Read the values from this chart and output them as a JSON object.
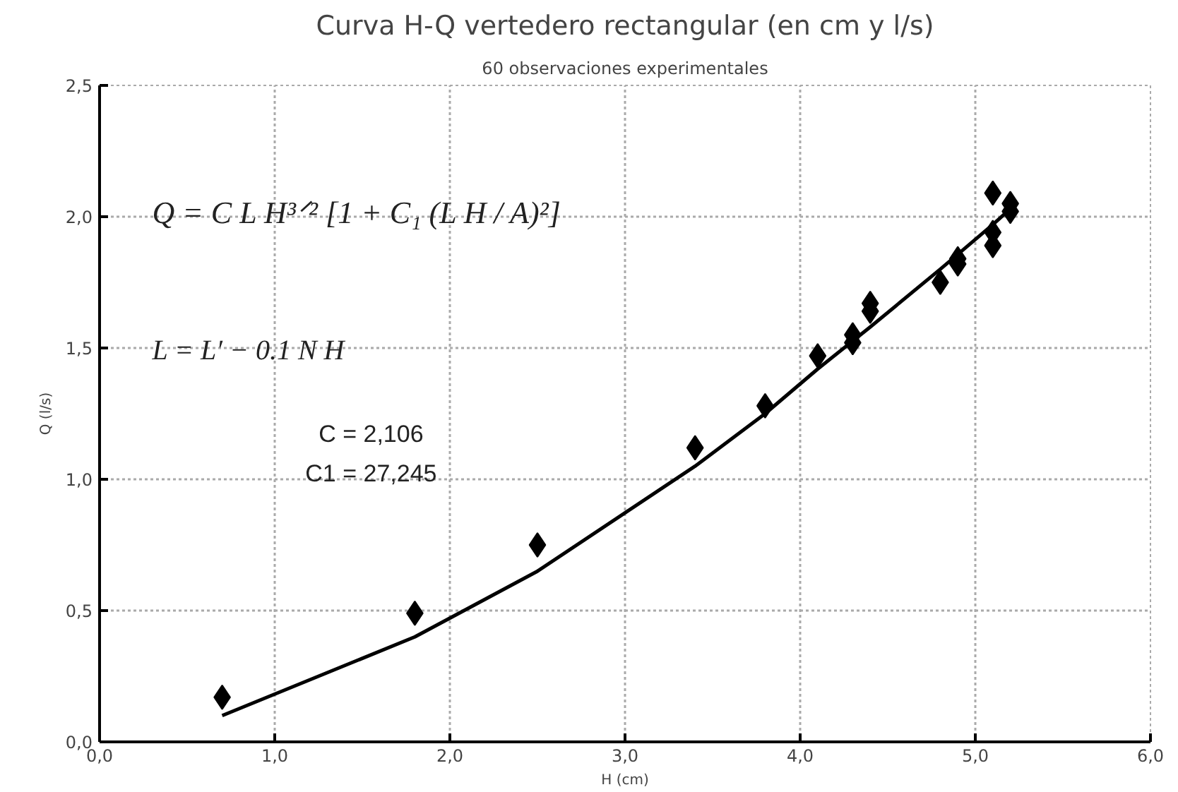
{
  "chart_data": {
    "type": "scatter",
    "title": "Curva H-Q vertedero rectangular (en cm y l/s)",
    "subtitle": "60 observaciones experimentales",
    "xlabel": "H (cm)",
    "ylabel": "Q (l/s)",
    "annotations": [
      "Q = C L H³ᐟ² [1 + C₁ (L H / A)²]",
      "L = L′ − 0.1 N H",
      "C = 2,106",
      "C1 = 27,245"
    ],
    "series": [
      {
        "color": "#000000",
        "marker": "diamond",
        "x": [
          0.7,
          1.8,
          2.5,
          3.4,
          3.8,
          4.1,
          4.3,
          4.3,
          4.4,
          4.4,
          4.8,
          4.9,
          4.9,
          5.1,
          5.1,
          5.1,
          5.2,
          5.2
        ],
        "values": [
          0.17,
          0.49,
          0.75,
          1.12,
          1.28,
          1.47,
          1.52,
          1.55,
          1.64,
          1.67,
          1.75,
          1.82,
          1.84,
          1.89,
          1.94,
          2.09,
          2.02,
          2.05
        ]
      },
      {
        "type": "line",
        "color": "#000000",
        "line_style": "solid",
        "x": [
          0.7,
          1.8,
          2.5,
          3.4,
          3.8,
          4.1,
          4.4,
          4.8,
          5.1,
          5.2
        ],
        "values": [
          0.1,
          0.4,
          0.65,
          1.05,
          1.25,
          1.42,
          1.58,
          1.8,
          1.97,
          2.03
        ]
      }
    ],
    "xlim": [
      0,
      6
    ],
    "ylim": [
      0,
      2.5
    ],
    "xticks": [
      {
        "value": 0,
        "label": "0,0"
      },
      {
        "value": 1,
        "label": "1,0"
      },
      {
        "value": 2,
        "label": "2,0"
      },
      {
        "value": 3,
        "label": "3,0"
      },
      {
        "value": 4,
        "label": "4,0"
      },
      {
        "value": 5,
        "label": "5,0"
      },
      {
        "value": 6,
        "label": "6,0"
      }
    ],
    "yticks": [
      {
        "value": 0,
        "label": "0,0"
      },
      {
        "value": 0.5,
        "label": "0,5"
      },
      {
        "value": 1,
        "label": "1,0"
      },
      {
        "value": 1.5,
        "label": "1,5"
      },
      {
        "value": 2,
        "label": "2,0"
      },
      {
        "value": 2.5,
        "label": "2,5"
      }
    ],
    "grid": true
  }
}
